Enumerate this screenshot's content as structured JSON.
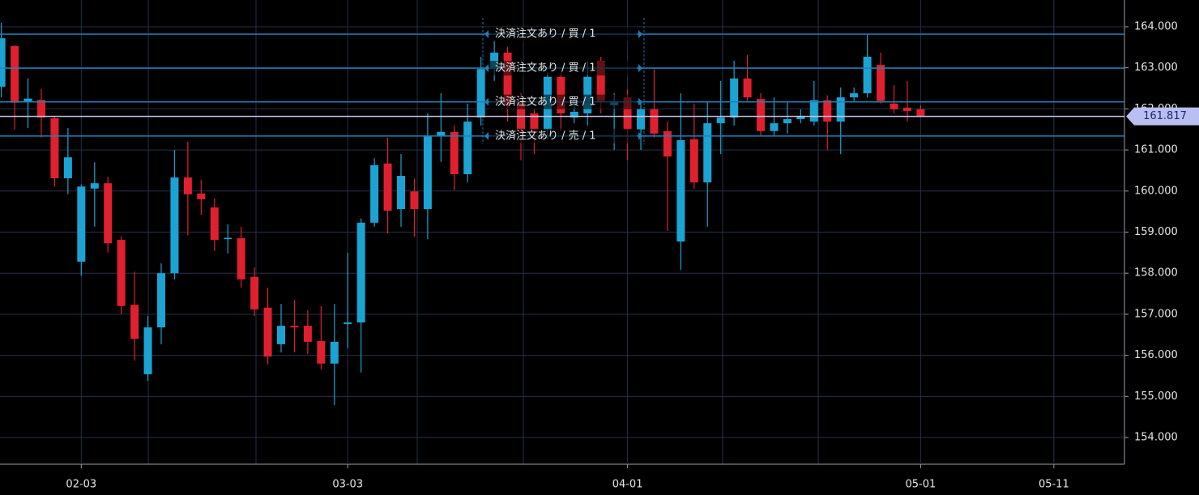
{
  "chart_data": {
    "type": "candlestick",
    "x": [
      0,
      1,
      2,
      3,
      4,
      5,
      6,
      7,
      8,
      9,
      10,
      11,
      12,
      13,
      14,
      15,
      16,
      17,
      18,
      19,
      20,
      21,
      22,
      23,
      24,
      25,
      26,
      27,
      28,
      29,
      30,
      31,
      32,
      33,
      34,
      35,
      36,
      37,
      38,
      39,
      40,
      41,
      42,
      43,
      44,
      45,
      46,
      47,
      48,
      49,
      50,
      51,
      52,
      53,
      54,
      55,
      56,
      57,
      58,
      59,
      60,
      61,
      62,
      63,
      64,
      65,
      66,
      67,
      68,
      69
    ],
    "open": [
      162.54,
      163.53,
      162.17,
      162.22,
      161.77,
      160.31,
      158.28,
      160.06,
      160.19,
      158.81,
      157.23,
      155.54,
      156.68,
      158.0,
      160.33,
      159.94,
      159.6,
      158.84,
      158.85,
      157.91,
      157.16,
      156.27,
      156.72,
      156.72,
      156.35,
      155.8,
      156.76,
      156.8,
      159.23,
      160.67,
      159.56,
      159.99,
      159.56,
      161.34,
      161.44,
      160.41,
      161.79,
      162.97,
      163.37,
      162.19,
      161.89,
      161.5,
      162.78,
      161.79,
      161.89,
      163.17,
      162.09,
      162.28,
      161.5,
      161.99,
      161.46,
      158.77,
      161.26,
      160.21,
      161.65,
      161.79,
      162.74,
      162.24,
      161.46,
      161.65,
      161.75,
      161.69,
      162.21,
      161.69,
      162.28,
      162.38,
      163.07,
      162.13,
      162.03,
      161.99
    ],
    "high": [
      164.1,
      163.55,
      162.74,
      162.48,
      161.8,
      161.53,
      160.16,
      160.7,
      160.35,
      158.9,
      158.04,
      156.96,
      158.24,
      161.0,
      161.2,
      160.27,
      159.82,
      159.19,
      159.13,
      158.14,
      157.65,
      157.25,
      157.35,
      157.1,
      157.2,
      157.25,
      158.5,
      159.33,
      160.8,
      161.3,
      160.9,
      160.3,
      161.89,
      162.38,
      161.6,
      162.13,
      163.27,
      163.66,
      163.51,
      162.38,
      161.99,
      162.88,
      162.88,
      162.28,
      163.17,
      163.27,
      162.38,
      162.48,
      162.19,
      162.97,
      161.69,
      162.38,
      162.13,
      162.19,
      162.68,
      163.17,
      163.31,
      162.38,
      162.28,
      162.19,
      161.99,
      162.68,
      162.33,
      162.52,
      162.52,
      163.8,
      163.37,
      162.58,
      162.68,
      162.09
    ],
    "low": [
      162.28,
      161.5,
      161.53,
      161.3,
      160.1,
      159.92,
      157.94,
      159.13,
      158.5,
      157.0,
      155.87,
      155.38,
      156.27,
      157.85,
      158.93,
      159.42,
      158.54,
      158.48,
      157.65,
      156.96,
      155.78,
      156.07,
      156.07,
      156.03,
      155.66,
      154.79,
      156.17,
      155.58,
      159.13,
      158.97,
      159.13,
      158.89,
      158.83,
      160.71,
      160.02,
      160.21,
      161.59,
      162.68,
      161.69,
      160.75,
      160.9,
      161.26,
      161.46,
      161.65,
      161.59,
      161.89,
      161.0,
      160.75,
      161.0,
      161.3,
      159.03,
      158.08,
      160.06,
      159.13,
      160.9,
      161.59,
      162.19,
      161.34,
      161.34,
      161.4,
      161.65,
      161.59,
      161.0,
      160.9,
      162.19,
      162.28,
      162.13,
      161.89,
      161.69,
      161.79
    ],
    "close": [
      163.72,
      162.15,
      162.25,
      161.79,
      160.31,
      160.82,
      160.11,
      160.19,
      158.73,
      157.2,
      156.4,
      156.68,
      158.0,
      160.33,
      159.92,
      159.8,
      158.81,
      158.86,
      157.85,
      157.12,
      155.97,
      156.72,
      156.68,
      156.33,
      155.8,
      156.33,
      156.8,
      159.23,
      160.63,
      159.52,
      160.37,
      159.56,
      161.34,
      161.44,
      160.41,
      161.69,
      162.97,
      163.37,
      162.09,
      161.5,
      161.5,
      162.78,
      161.89,
      161.93,
      162.78,
      162.19,
      162.19,
      161.5,
      161.99,
      161.4,
      160.84,
      161.24,
      160.21,
      161.65,
      161.79,
      162.74,
      162.28,
      161.46,
      161.65,
      161.75,
      161.83,
      162.21,
      161.69,
      162.28,
      162.38,
      163.27,
      162.19,
      161.99,
      161.95,
      161.817
    ],
    "up_color": "#1ba3d3",
    "down_color": "#e0202e",
    "xlim": [
      -0.1,
      84.3
    ],
    "xticks": [
      {
        "value": 6,
        "label": "02-03"
      },
      {
        "value": 26,
        "label": "03-03"
      },
      {
        "value": 47,
        "label": "04-01"
      },
      {
        "value": 69,
        "label": "05-01"
      },
      {
        "value": 79,
        "label": "05-11"
      }
    ],
    "ylim": [
      153.35,
      164.65
    ],
    "yticks": [
      {
        "value": 154,
        "label": "154.000"
      },
      {
        "value": 155,
        "label": "155.000"
      },
      {
        "value": 156,
        "label": "156.000"
      },
      {
        "value": 157,
        "label": "157.000"
      },
      {
        "value": 158,
        "label": "158.000"
      },
      {
        "value": 159,
        "label": "159.000"
      },
      {
        "value": 160,
        "label": "160.000"
      },
      {
        "value": 161,
        "label": "161.000"
      },
      {
        "value": 162,
        "label": "162.000"
      },
      {
        "value": 163,
        "label": "163.000"
      },
      {
        "value": 164,
        "label": "164.000"
      }
    ],
    "grid": true,
    "order_lines": [
      {
        "value": 163.82,
        "label": "決済注文あり / 買 / 1"
      },
      {
        "value": 162.99,
        "label": "決済注文あり / 買 / 1"
      },
      {
        "value": 162.17,
        "label": "決済注文あり / 買 / 1"
      },
      {
        "value": 161.34,
        "label": "決済注文あり / 売 / 1"
      }
    ],
    "last_price": {
      "value": 161.817,
      "label": "161.817"
    }
  }
}
